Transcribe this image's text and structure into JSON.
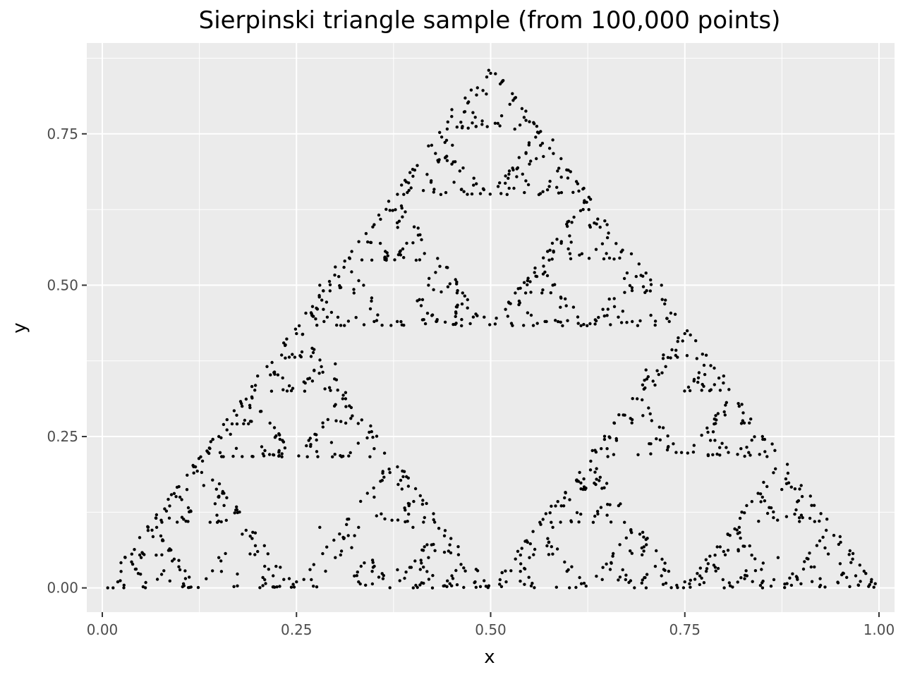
{
  "chart_data": {
    "type": "scatter",
    "title": "Sierpinski triangle sample (from 100,000 points)",
    "xlabel": "x",
    "ylabel": "y",
    "xlim": [
      -0.02,
      1.02
    ],
    "ylim": [
      -0.04,
      0.9
    ],
    "x_ticks": [
      0.0,
      0.25,
      0.5,
      0.75,
      1.0
    ],
    "x_tick_labels": [
      "0.00",
      "0.25",
      "0.50",
      "0.75",
      "1.00"
    ],
    "y_ticks": [
      0.0,
      0.25,
      0.5,
      0.75
    ],
    "y_tick_labels": [
      "0.00",
      "0.25",
      "0.50",
      "0.75"
    ],
    "grid": true,
    "legend": "none",
    "colors": {
      "panel": "#ebebeb",
      "grid": "#ffffff",
      "point": "#000000",
      "tick": "#333333"
    },
    "triangle_vertices": [
      [
        0.0,
        0.0
      ],
      [
        1.0,
        0.0
      ],
      [
        0.5,
        0.866
      ]
    ],
    "points": [
      [
        0.5,
        0.85
      ],
      [
        0.45,
        0.79
      ],
      [
        0.55,
        0.77
      ],
      [
        0.42,
        0.73
      ],
      [
        0.58,
        0.74
      ],
      [
        0.4,
        0.68
      ],
      [
        0.45,
        0.7
      ],
      [
        0.55,
        0.7
      ],
      [
        0.6,
        0.69
      ],
      [
        0.38,
        0.65
      ],
      [
        0.47,
        0.65
      ],
      [
        0.53,
        0.66
      ],
      [
        0.62,
        0.66
      ],
      [
        0.35,
        0.6
      ],
      [
        0.3,
        0.53
      ],
      [
        0.4,
        0.57
      ],
      [
        0.65,
        0.6
      ],
      [
        0.7,
        0.52
      ],
      [
        0.6,
        0.56
      ],
      [
        0.27,
        0.45
      ],
      [
        0.35,
        0.44
      ],
      [
        0.43,
        0.44
      ],
      [
        0.57,
        0.44
      ],
      [
        0.65,
        0.45
      ],
      [
        0.73,
        0.44
      ],
      [
        0.28,
        0.5
      ],
      [
        0.42,
        0.5
      ],
      [
        0.58,
        0.5
      ],
      [
        0.72,
        0.5
      ],
      [
        0.25,
        0.42
      ],
      [
        0.2,
        0.35
      ],
      [
        0.3,
        0.37
      ],
      [
        0.75,
        0.42
      ],
      [
        0.8,
        0.35
      ],
      [
        0.7,
        0.36
      ],
      [
        0.18,
        0.3
      ],
      [
        0.15,
        0.25
      ],
      [
        0.22,
        0.22
      ],
      [
        0.32,
        0.28
      ],
      [
        0.35,
        0.23
      ],
      [
        0.68,
        0.28
      ],
      [
        0.65,
        0.23
      ],
      [
        0.78,
        0.22
      ],
      [
        0.85,
        0.25
      ],
      [
        0.82,
        0.3
      ],
      [
        0.12,
        0.2
      ],
      [
        0.1,
        0.15
      ],
      [
        0.15,
        0.15
      ],
      [
        0.07,
        0.1
      ],
      [
        0.05,
        0.05
      ],
      [
        0.02,
        0.01
      ],
      [
        0.1,
        0.03
      ],
      [
        0.15,
        0.05
      ],
      [
        0.2,
        0.06
      ],
      [
        0.22,
        0.02
      ],
      [
        0.25,
        0.01
      ],
      [
        0.3,
        0.05
      ],
      [
        0.28,
        0.1
      ],
      [
        0.35,
        0.15
      ],
      [
        0.38,
        0.2
      ],
      [
        0.33,
        0.1
      ],
      [
        0.4,
        0.1
      ],
      [
        0.42,
        0.05
      ],
      [
        0.45,
        0.02
      ],
      [
        0.48,
        0.01
      ],
      [
        0.38,
        0.03
      ],
      [
        0.33,
        0.01
      ],
      [
        0.52,
        0.01
      ],
      [
        0.55,
        0.05
      ],
      [
        0.58,
        0.1
      ],
      [
        0.62,
        0.18
      ],
      [
        0.65,
        0.12
      ],
      [
        0.6,
        0.03
      ],
      [
        0.67,
        0.03
      ],
      [
        0.7,
        0.08
      ],
      [
        0.72,
        0.02
      ],
      [
        0.75,
        0.01
      ],
      [
        0.78,
        0.04
      ],
      [
        0.82,
        0.1
      ],
      [
        0.85,
        0.15
      ],
      [
        0.88,
        0.18
      ],
      [
        0.9,
        0.12
      ],
      [
        0.92,
        0.07
      ],
      [
        0.95,
        0.04
      ],
      [
        0.97,
        0.02
      ],
      [
        0.99,
        0.01
      ],
      [
        0.87,
        0.05
      ],
      [
        0.83,
        0.02
      ],
      [
        0.8,
        0.06
      ]
    ]
  }
}
